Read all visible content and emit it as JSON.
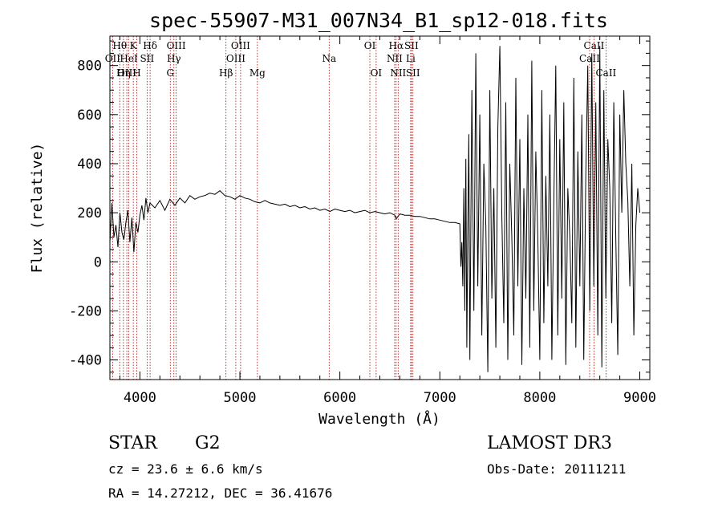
{
  "chart_data": {
    "type": "line",
    "title": "spec-55907-M31_007N34_B1_sp12-018.fits",
    "xlabel": "Wavelength (Å)",
    "ylabel": "Flux (relative)",
    "xlim": [
      3700,
      9100
    ],
    "ylim": [
      -480,
      920
    ],
    "xticks": [
      4000,
      5000,
      6000,
      7000,
      8000,
      9000
    ],
    "yticks": [
      -400,
      -200,
      0,
      200,
      400,
      600,
      800
    ],
    "grid": false,
    "series": [
      {
        "name": "spectrum",
        "x": [
          3700,
          3720,
          3740,
          3760,
          3780,
          3800,
          3820,
          3840,
          3860,
          3880,
          3900,
          3920,
          3940,
          3960,
          3980,
          4000,
          4020,
          4040,
          4060,
          4080,
          4100,
          4150,
          4200,
          4250,
          4300,
          4350,
          4400,
          4450,
          4500,
          4550,
          4600,
          4650,
          4700,
          4750,
          4800,
          4850,
          4900,
          4950,
          5000,
          5050,
          5100,
          5150,
          5200,
          5250,
          5300,
          5350,
          5400,
          5450,
          5500,
          5550,
          5600,
          5650,
          5700,
          5750,
          5800,
          5850,
          5900,
          5950,
          6000,
          6050,
          6100,
          6150,
          6200,
          6250,
          6300,
          6350,
          6400,
          6450,
          6500,
          6550,
          6563,
          6600,
          6650,
          6700,
          6750,
          6800,
          6850,
          6900,
          6950,
          7000,
          7050,
          7100,
          7150,
          7200,
          7210,
          7220,
          7230,
          7240,
          7250,
          7260,
          7270,
          7280,
          7290,
          7300,
          7320,
          7340,
          7360,
          7380,
          7400,
          7420,
          7440,
          7460,
          7480,
          7500,
          7520,
          7540,
          7560,
          7580,
          7600,
          7620,
          7640,
          7660,
          7680,
          7700,
          7720,
          7740,
          7760,
          7780,
          7800,
          7820,
          7840,
          7860,
          7880,
          7900,
          7920,
          7940,
          7960,
          7980,
          8000,
          8020,
          8040,
          8060,
          8080,
          8100,
          8120,
          8140,
          8160,
          8180,
          8200,
          8220,
          8240,
          8260,
          8280,
          8300,
          8320,
          8340,
          8360,
          8380,
          8400,
          8420,
          8440,
          8460,
          8480,
          8500,
          8520,
          8540,
          8560,
          8580,
          8600,
          8620,
          8640,
          8660,
          8680,
          8700,
          8720,
          8740,
          8760,
          8780,
          8800,
          8820,
          8840,
          8860,
          8880,
          8900,
          8920,
          8940,
          8960,
          8980,
          9000
        ],
        "y": [
          80,
          240,
          100,
          150,
          60,
          200,
          120,
          90,
          160,
          210,
          80,
          180,
          40,
          160,
          120,
          190,
          230,
          170,
          260,
          200,
          240,
          220,
          250,
          210,
          255,
          230,
          260,
          240,
          270,
          255,
          265,
          270,
          280,
          275,
          290,
          270,
          265,
          255,
          270,
          260,
          255,
          245,
          240,
          250,
          240,
          235,
          230,
          235,
          225,
          230,
          220,
          225,
          215,
          220,
          210,
          215,
          205,
          215,
          210,
          205,
          210,
          200,
          205,
          210,
          200,
          205,
          200,
          195,
          200,
          190,
          175,
          195,
          190,
          190,
          185,
          185,
          180,
          175,
          175,
          170,
          165,
          160,
          160,
          155,
          -20,
          80,
          -100,
          300,
          -200,
          420,
          -350,
          150,
          520,
          -400,
          700,
          -200,
          850,
          -100,
          600,
          -300,
          400,
          150,
          -450,
          700,
          -150,
          300,
          -350,
          550,
          880,
          200,
          -250,
          650,
          -400,
          400,
          100,
          -300,
          750,
          -100,
          500,
          -420,
          300,
          -150,
          600,
          -350,
          820,
          -200,
          450,
          100,
          -400,
          700,
          -250,
          350,
          -100,
          600,
          -400,
          250,
          800,
          -300,
          500,
          -150,
          650,
          -420,
          300,
          100,
          -250,
          750,
          -350,
          450,
          -100,
          600,
          -400,
          350,
          800,
          -200,
          850,
          -100,
          650,
          -300,
          880,
          -430,
          700,
          -150,
          500,
          300,
          -250,
          650,
          100,
          -380,
          600,
          200,
          700,
          400,
          250,
          -100,
          400,
          -300,
          150,
          300,
          200
        ]
      }
    ],
    "line_markers": [
      {
        "label": "Hθ",
        "wavelength": 3798,
        "row": 0
      },
      {
        "label": "OII",
        "wavelength": 3727,
        "row": 1
      },
      {
        "label": "OIII",
        "wavelength": 3869,
        "row": 2
      },
      {
        "label": "Hη",
        "wavelength": 3835,
        "row": 2
      },
      {
        "label": "K",
        "wavelength": 3934,
        "row": 0
      },
      {
        "label": "HeI",
        "wavelength": 3889,
        "row": 1
      },
      {
        "label": "H",
        "wavelength": 3969,
        "row": 2
      },
      {
        "label": "Hδ",
        "wavelength": 4102,
        "row": 0
      },
      {
        "label": "SII",
        "wavelength": 4072,
        "row": 1
      },
      {
        "label": "OIII",
        "wavelength": 4363,
        "row": 0
      },
      {
        "label": "Hγ",
        "wavelength": 4340,
        "row": 1
      },
      {
        "label": "G",
        "wavelength": 4304,
        "row": 2
      },
      {
        "label": "OIII",
        "wavelength": 5007,
        "row": 0
      },
      {
        "label": "OIII",
        "wavelength": 4959,
        "row": 1
      },
      {
        "label": "Hβ",
        "wavelength": 4861,
        "row": 2
      },
      {
        "label": "Mg",
        "wavelength": 5175,
        "row": 2
      },
      {
        "label": "Na",
        "wavelength": 5893,
        "row": 1
      },
      {
        "label": "OI",
        "wavelength": 6300,
        "row": 0
      },
      {
        "label": "OI",
        "wavelength": 6363,
        "row": 2
      },
      {
        "label": "Hα",
        "wavelength": 6563,
        "row": 0
      },
      {
        "label": "SII",
        "wavelength": 6716,
        "row": 0
      },
      {
        "label": "NII",
        "wavelength": 6548,
        "row": 1
      },
      {
        "label": "Li",
        "wavelength": 6708,
        "row": 1
      },
      {
        "label": "NII",
        "wavelength": 6583,
        "row": 2
      },
      {
        "label": "SII",
        "wavelength": 6731,
        "row": 2
      },
      {
        "label": "CaII",
        "wavelength": 8542,
        "row": 0
      },
      {
        "label": "CaII",
        "wavelength": 8498,
        "row": 1
      },
      {
        "label": "CaII",
        "wavelength": 8662,
        "row": 2
      }
    ]
  },
  "footer": {
    "object_type": "STAR",
    "subclass": "G2",
    "cz": "cz = 23.6 ± 6.6 km/s",
    "coords": "RA =  14.27212, DEC =  36.41676",
    "survey": "LAMOST DR3",
    "obs_date": "Obs-Date: 20111211"
  },
  "colors": {
    "spectrum": "#000000",
    "marker_line": "#b00000",
    "axis": "#000000"
  }
}
